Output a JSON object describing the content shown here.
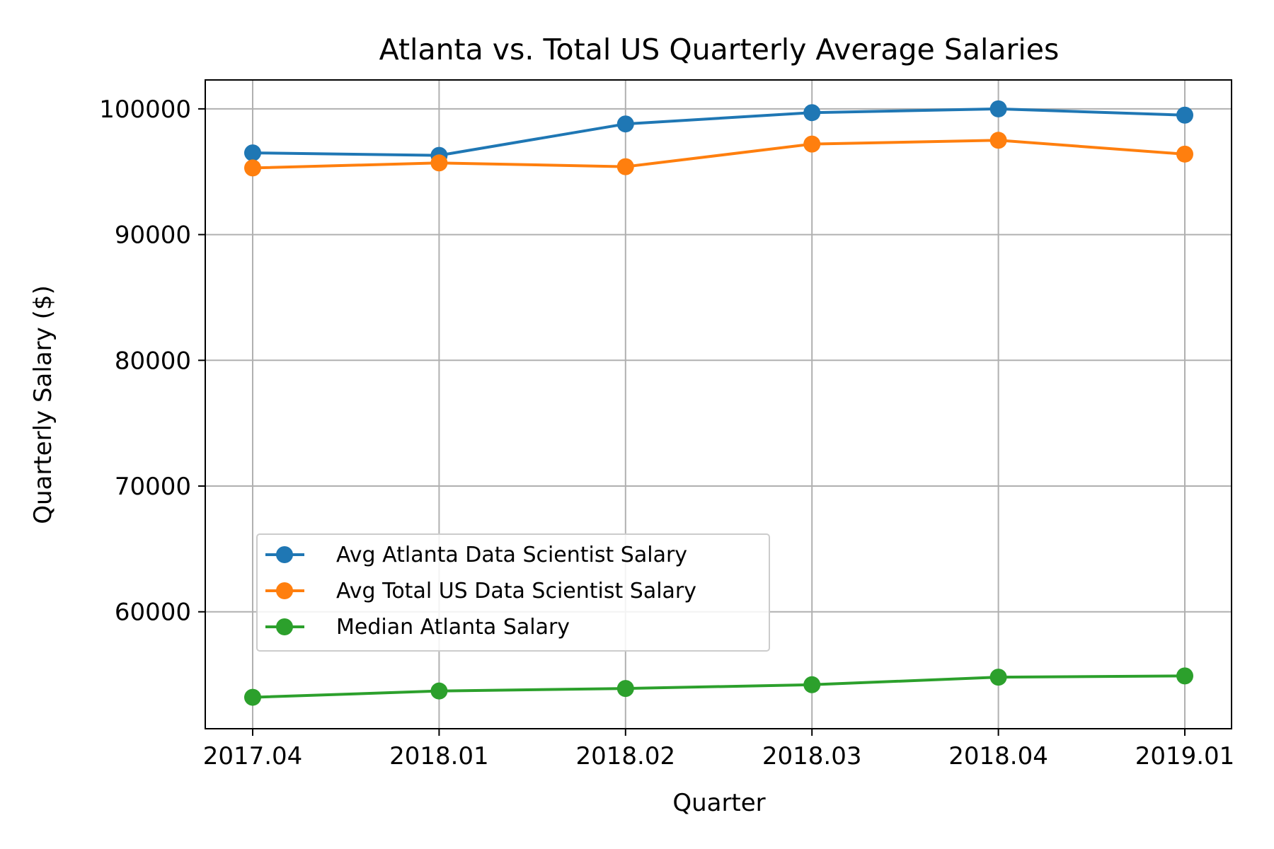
{
  "chart_data": {
    "type": "line",
    "title": "Atlanta vs. Total US Quarterly Average Salaries",
    "xlabel": "Quarter",
    "ylabel": "Quarterly Salary ($)",
    "categories": [
      "2017.04",
      "2018.01",
      "2018.02",
      "2018.03",
      "2018.04",
      "2019.01"
    ],
    "yticks": [
      60000,
      70000,
      80000,
      90000,
      100000
    ],
    "ylim": [
      50700,
      102300
    ],
    "grid": true,
    "legend_position": "lower-left",
    "series": [
      {
        "name": "Avg Atlanta Data Scientist Salary",
        "color": "#1f77b4",
        "values": [
          96500,
          96300,
          98800,
          99700,
          100000,
          99500
        ]
      },
      {
        "name": "Avg Total US Data Scientist Salary",
        "color": "#ff7f0e",
        "values": [
          95300,
          95700,
          95400,
          97200,
          97500,
          96400
        ]
      },
      {
        "name": "Median Atlanta Salary",
        "color": "#2ca02c",
        "values": [
          53200,
          53700,
          53900,
          54200,
          54800,
          54900
        ]
      }
    ]
  }
}
